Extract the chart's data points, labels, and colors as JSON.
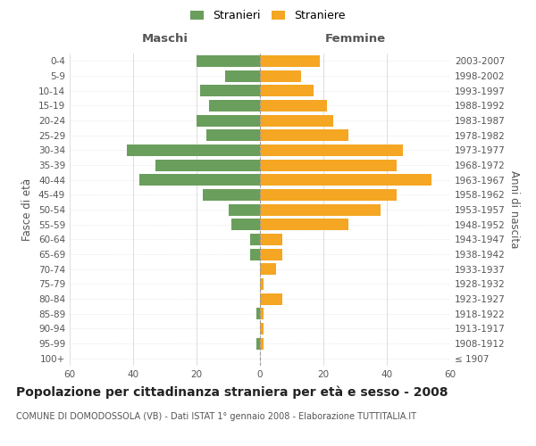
{
  "age_groups": [
    "100+",
    "95-99",
    "90-94",
    "85-89",
    "80-84",
    "75-79",
    "70-74",
    "65-69",
    "60-64",
    "55-59",
    "50-54",
    "45-49",
    "40-44",
    "35-39",
    "30-34",
    "25-29",
    "20-24",
    "15-19",
    "10-14",
    "5-9",
    "0-4"
  ],
  "birth_years": [
    "≤ 1907",
    "1908-1912",
    "1913-1917",
    "1918-1922",
    "1923-1927",
    "1928-1932",
    "1933-1937",
    "1938-1942",
    "1943-1947",
    "1948-1952",
    "1953-1957",
    "1958-1962",
    "1963-1967",
    "1968-1972",
    "1973-1977",
    "1978-1982",
    "1983-1987",
    "1988-1992",
    "1993-1997",
    "1998-2002",
    "2003-2007"
  ],
  "maschi": [
    0,
    1,
    0,
    1,
    0,
    0,
    0,
    3,
    3,
    9,
    10,
    18,
    38,
    33,
    42,
    17,
    20,
    16,
    19,
    11,
    20
  ],
  "femmine": [
    0,
    1,
    1,
    1,
    7,
    1,
    5,
    7,
    7,
    28,
    38,
    43,
    54,
    43,
    45,
    28,
    23,
    21,
    17,
    13,
    19
  ],
  "maschi_color": "#6a9e5c",
  "femmine_color": "#f5a623",
  "xlim": 60,
  "title": "Popolazione per cittadinanza straniera per età e sesso - 2008",
  "subtitle": "COMUNE DI DOMODOSSOLA (VB) - Dati ISTAT 1° gennaio 2008 - Elaborazione TUTTITALIA.IT",
  "ylabel_left": "Fasce di età",
  "ylabel_right": "Anni di nascita",
  "xlabel_maschi": "Maschi",
  "xlabel_femmine": "Femmine",
  "legend_maschi": "Stranieri",
  "legend_femmine": "Straniere",
  "bg_color": "#ffffff",
  "grid_color": "#d0d0d0",
  "title_fontsize": 10,
  "subtitle_fontsize": 7,
  "label_fontsize": 8.5,
  "tick_fontsize": 7.5
}
